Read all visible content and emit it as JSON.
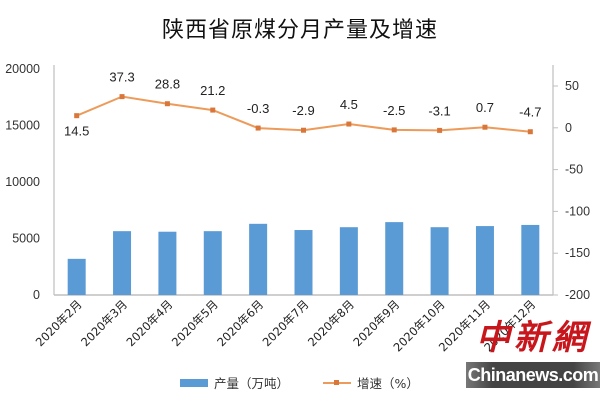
{
  "title": "陕西省原煤分月产量及增速",
  "legend": {
    "bar_label": "产量（万吨）",
    "line_label": "增速（%）"
  },
  "watermark": {
    "cn": "中新網",
    "en": "Chinanews.com"
  },
  "colors": {
    "bar": "#5b9bd5",
    "line": "#ed9b5a",
    "marker": "#d9773a",
    "axis": "#bfbfbf"
  },
  "chart_data": {
    "type": "bar+line",
    "title": "陕西省原煤分月产量及增速",
    "categories": [
      "2020年2月",
      "2020年3月",
      "2020年4月",
      "2020年5月",
      "2020年6月",
      "2020年7月",
      "2020年8月",
      "2020年9月",
      "2020年10月",
      "2020年11月",
      "2020年12月"
    ],
    "series": [
      {
        "name": "产量（万吨）",
        "type": "bar",
        "axis": "left",
        "values": [
          3200,
          5650,
          5600,
          5650,
          6300,
          5750,
          6000,
          6450,
          6000,
          6100,
          6200
        ]
      },
      {
        "name": "增速（%）",
        "type": "line",
        "axis": "right",
        "values": [
          14.5,
          37.3,
          28.8,
          21.2,
          -0.3,
          -2.9,
          4.5,
          -2.5,
          -3.1,
          0.7,
          -4.7
        ],
        "labels": [
          "14.5",
          "37.3",
          "28.8",
          "21.2",
          "-0.3",
          "-2.9",
          "4.5",
          "-2.5",
          "-3.1",
          "0.7",
          "-4.7"
        ]
      }
    ],
    "left_axis": {
      "min": 0,
      "max": 20000,
      "ticks": [
        "0",
        "5000",
        "10000",
        "15000",
        "20000"
      ]
    },
    "right_axis": {
      "min": -200,
      "max": 50,
      "ticks": [
        "50",
        "0",
        "-50",
        "-100",
        "-150",
        "-200"
      ]
    },
    "xlabel": "",
    "ylabel": "",
    "grid": false,
    "legend_position": "bottom"
  }
}
